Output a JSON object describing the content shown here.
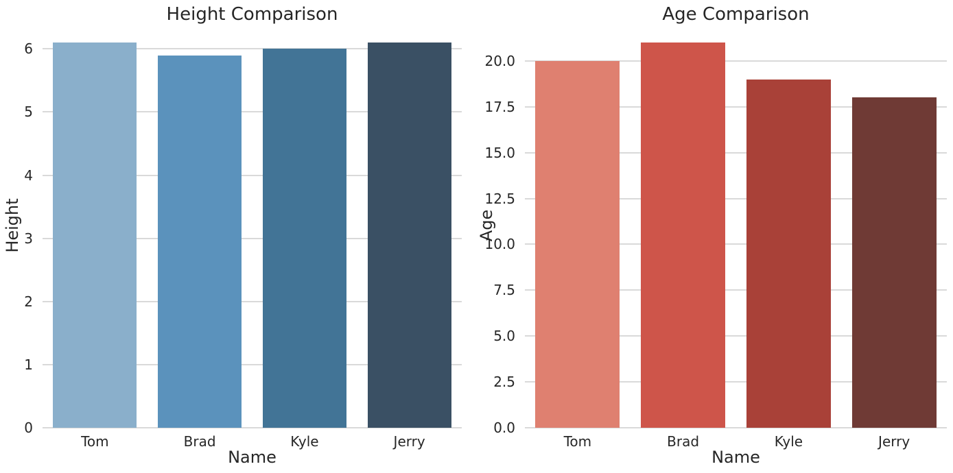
{
  "figure": {
    "background": "#ffffff",
    "text_color": "#262626",
    "grid_color": "#d9d9d9"
  },
  "chart_data": [
    {
      "type": "bar",
      "title": "Height Comparison",
      "xlabel": "Name",
      "ylabel": "Height",
      "categories": [
        "Tom",
        "Brad",
        "Kyle",
        "Jerry"
      ],
      "values": [
        6.1,
        5.9,
        6.0,
        6.1
      ],
      "bar_colors": [
        "#8aafcb",
        "#5b92bc",
        "#427496",
        "#3a5064"
      ],
      "yticks": [
        "0",
        "1",
        "2",
        "3",
        "4",
        "5",
        "6"
      ],
      "ytick_values": [
        0,
        1,
        2,
        3,
        4,
        5,
        6
      ],
      "ylim": [
        0,
        6.405
      ],
      "grid": "horizontal",
      "legend": "none"
    },
    {
      "type": "bar",
      "title": "Age Comparison",
      "xlabel": "Name",
      "ylabel": "Age",
      "categories": [
        "Tom",
        "Brad",
        "Kyle",
        "Jerry"
      ],
      "values": [
        20,
        21,
        19,
        18
      ],
      "bar_colors": [
        "#df8070",
        "#ce554a",
        "#a94138",
        "#6f3a35"
      ],
      "yticks": [
        "0.0",
        "2.5",
        "5.0",
        "7.5",
        "10.0",
        "12.5",
        "15.0",
        "17.5",
        "20.0"
      ],
      "ytick_values": [
        0,
        2.5,
        5,
        7.5,
        10,
        12.5,
        15,
        17.5,
        20
      ],
      "ylim": [
        0,
        22.05
      ],
      "grid": "horizontal",
      "legend": "none"
    }
  ]
}
